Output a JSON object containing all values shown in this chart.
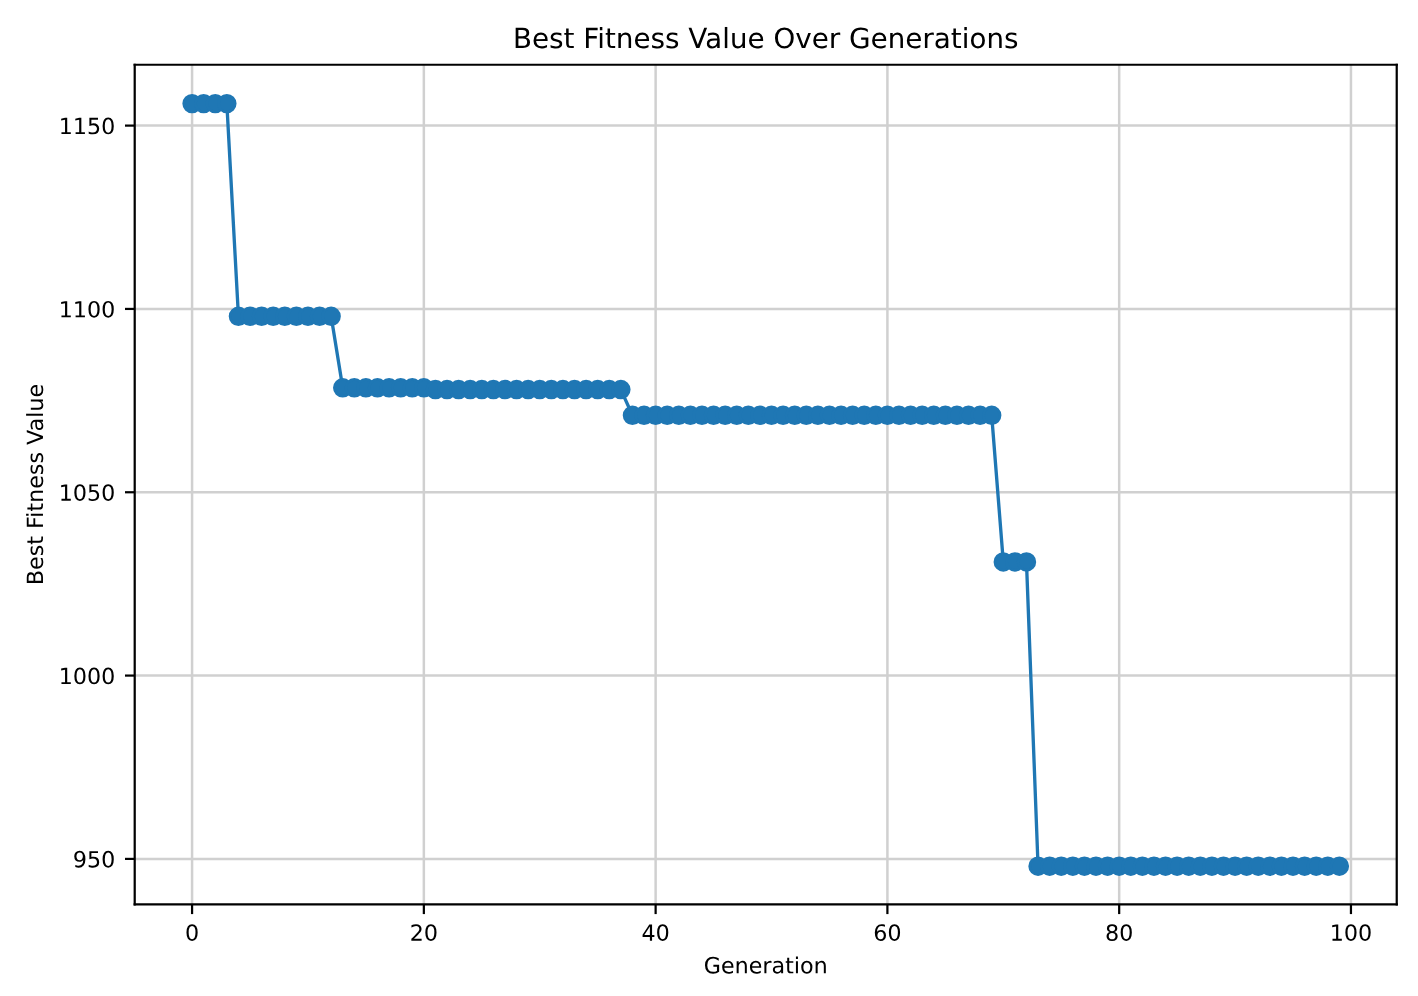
{
  "chart_data": {
    "type": "line",
    "title": "Best Fitness Value Over Generations",
    "xlabel": "Generation",
    "ylabel": "Best Fitness Value",
    "x": [
      0,
      1,
      2,
      3,
      4,
      5,
      6,
      7,
      8,
      9,
      10,
      11,
      12,
      13,
      14,
      15,
      16,
      17,
      18,
      19,
      20,
      21,
      22,
      23,
      24,
      25,
      26,
      27,
      28,
      29,
      30,
      31,
      32,
      33,
      34,
      35,
      36,
      37,
      38,
      39,
      40,
      41,
      42,
      43,
      44,
      45,
      46,
      47,
      48,
      49,
      50,
      51,
      52,
      53,
      54,
      55,
      56,
      57,
      58,
      59,
      60,
      61,
      62,
      63,
      64,
      65,
      66,
      67,
      68,
      69,
      70,
      71,
      72,
      73,
      74,
      75,
      76,
      77,
      78,
      79,
      80,
      81,
      82,
      83,
      84,
      85,
      86,
      87,
      88,
      89,
      90,
      91,
      92,
      93,
      94,
      95,
      96,
      97,
      98,
      99
    ],
    "series": [
      {
        "color": "#1f77b4",
        "values": [
          1156,
          1156,
          1156,
          1156,
          1098,
          1098,
          1098,
          1098,
          1098,
          1098,
          1098,
          1098,
          1098,
          1078.5,
          1078.5,
          1078.5,
          1078.5,
          1078.5,
          1078.5,
          1078.5,
          1078.5,
          1078,
          1078,
          1078,
          1078,
          1078,
          1078,
          1078,
          1078,
          1078,
          1078,
          1078,
          1078,
          1078,
          1078,
          1078,
          1078,
          1078,
          1071,
          1071,
          1071,
          1071,
          1071,
          1071,
          1071,
          1071,
          1071,
          1071,
          1071,
          1071,
          1071,
          1071,
          1071,
          1071,
          1071,
          1071,
          1071,
          1071,
          1071,
          1071,
          1071,
          1071,
          1071,
          1071,
          1071,
          1071,
          1071,
          1071,
          1071,
          1071,
          1031,
          1031,
          1031,
          948,
          948,
          948,
          948,
          948,
          948,
          948,
          948,
          948,
          948,
          948,
          948,
          948,
          948,
          948,
          948,
          948,
          948,
          948,
          948,
          948,
          948,
          948,
          948,
          948,
          948,
          948
        ]
      }
    ],
    "xlim": [
      -4.95,
      103.95
    ],
    "ylim": [
      937.6,
      1166.6
    ],
    "xticks": [
      0,
      20,
      40,
      60,
      80,
      100
    ],
    "yticks": [
      950,
      1000,
      1050,
      1100,
      1150
    ],
    "grid": true,
    "marker": "circle",
    "line_style": "solid"
  }
}
